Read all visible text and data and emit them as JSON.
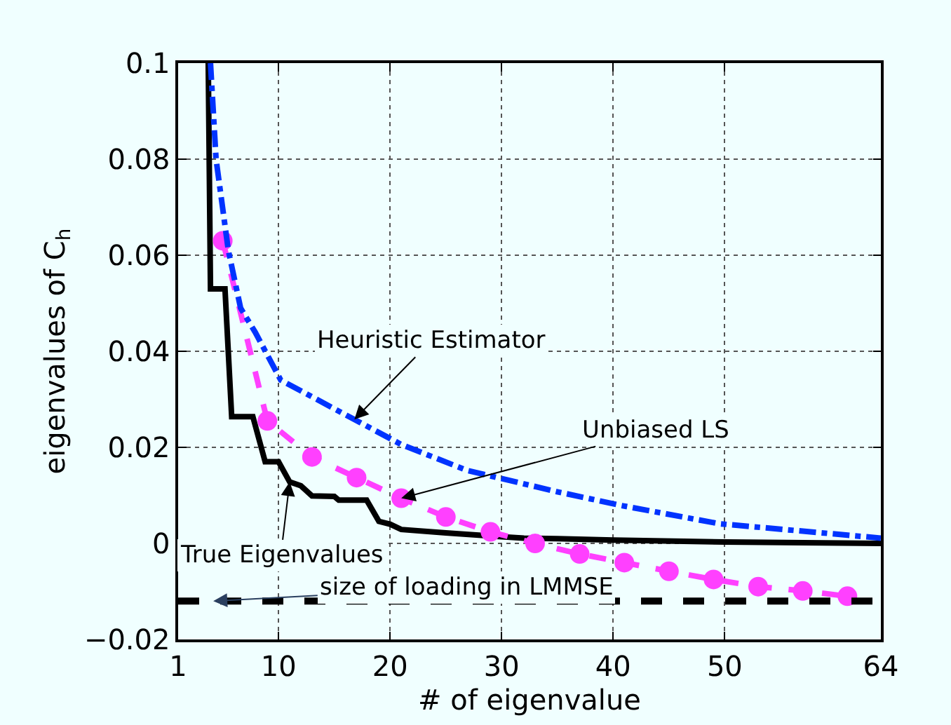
{
  "chart_data": {
    "type": "line",
    "xlabel": "# of eigenvalue",
    "ylabel": "eigenvalues of C$_{h}$",
    "xlim": [
      1,
      64
    ],
    "xticks": [
      1,
      10,
      20,
      30,
      40,
      50,
      64
    ],
    "ylim": [
      -0.02,
      0.1
    ],
    "yticks": [
      {
        "value": -0.02,
        "label": "−0.02"
      },
      0,
      0.02,
      0.04,
      0.06,
      0.08,
      0.1
    ],
    "grid": true,
    "legend": false,
    "series": [
      {
        "name": "True Eigenvalues",
        "color": "#000000",
        "line_style": "solid",
        "marker": "none",
        "x": [
          3.7,
          3.9,
          5.2,
          5.8,
          7.7,
          8.8,
          10,
          11,
          12,
          13,
          15,
          15.4,
          17.9,
          19,
          20,
          21,
          25,
          30,
          32,
          35,
          40,
          50,
          64
        ],
        "values": [
          0.1,
          0.053,
          0.053,
          0.0264,
          0.0264,
          0.017,
          0.017,
          0.0128,
          0.012,
          0.0099,
          0.0098,
          0.009,
          0.009,
          0.0046,
          0.004,
          0.0029,
          0.0022,
          0.0014,
          0.0011,
          0.001,
          0.0007,
          0.0003,
          0.0
        ]
      },
      {
        "name": "Unbiased LS",
        "color": "#ff40ff",
        "line_style": "dashed",
        "marker": "circle",
        "x": [
          5,
          9,
          13,
          17,
          21,
          25,
          29,
          33,
          37,
          41,
          45,
          49,
          53,
          57,
          61
        ],
        "values": [
          0.063,
          0.0255,
          0.018,
          0.0137,
          0.0094,
          0.0055,
          0.0024,
          0.0,
          -0.0022,
          -0.004,
          -0.0058,
          -0.0075,
          -0.009,
          -0.0099,
          -0.011
        ]
      },
      {
        "name": "Heuristic Estimator",
        "color": "#0033ff",
        "line_style": "dashdot",
        "marker": "none",
        "x": [
          3.9,
          4.4,
          5.5,
          6.6,
          7.9,
          10.2,
          16.8,
          21,
          26.9,
          34.9,
          40.7,
          49.5,
          64
        ],
        "values": [
          0.1,
          0.08,
          0.061,
          0.049,
          0.044,
          0.034,
          0.0258,
          0.0206,
          0.0152,
          0.0108,
          0.0079,
          0.0041,
          0.0011
        ]
      }
    ],
    "ref_lines": [
      {
        "axis": "y",
        "value": -0.012,
        "label": "size of loading in LMMSE",
        "color": "#000000",
        "line_style": "dashed"
      }
    ]
  }
}
